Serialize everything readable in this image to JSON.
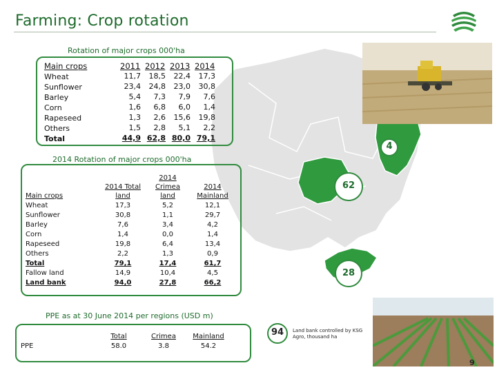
{
  "title": "Farming: Crop rotation",
  "table1": {
    "title": "Rotation of major crops 000'ha",
    "header": "Main crops",
    "years": [
      "2011",
      "2012",
      "2013",
      "2014"
    ],
    "rows": [
      {
        "crop": "Wheat",
        "values": [
          "11,7",
          "18,5",
          "22,4",
          "17,3"
        ]
      },
      {
        "crop": "Sunflower",
        "values": [
          "23,4",
          "24,8",
          "23,0",
          "30,8"
        ]
      },
      {
        "crop": "Barley",
        "values": [
          "5,4",
          "7,3",
          "7,9",
          "7,6"
        ]
      },
      {
        "crop": "Corn",
        "values": [
          "1,6",
          "6,8",
          "6,0",
          "1,4"
        ]
      },
      {
        "crop": "Rapeseed",
        "values": [
          "1,3",
          "2,6",
          "15,6",
          "19,8"
        ]
      },
      {
        "crop": "Others",
        "values": [
          "1,5",
          "2,8",
          "5,1",
          "2,2"
        ]
      },
      {
        "crop": "Total",
        "values": [
          "44,9",
          "62,8",
          "80,0",
          "79,1"
        ]
      }
    ]
  },
  "table2": {
    "title": "2014 Rotation of major crops 000'ha",
    "header": "Main crops",
    "col1": [
      "2014 Total",
      "land"
    ],
    "col2": [
      "2014",
      "Crimea",
      "land"
    ],
    "col3": [
      "2014",
      "Mainland"
    ],
    "rows": [
      {
        "crop": "Wheat",
        "values": [
          "17,3",
          "5,2",
          "12,1"
        ]
      },
      {
        "crop": "Sunflower",
        "values": [
          "30,8",
          "1,1",
          "29,7"
        ]
      },
      {
        "crop": "Barley",
        "values": [
          "7,6",
          "3,4",
          "4,2"
        ]
      },
      {
        "crop": "Corn",
        "values": [
          "1,4",
          "0,0",
          "1,4"
        ]
      },
      {
        "crop": "Rapeseed",
        "values": [
          "19,8",
          "6,4",
          "13,4"
        ]
      },
      {
        "crop": "Others",
        "values": [
          "2,2",
          "1,3",
          "0,9"
        ]
      },
      {
        "crop": "Total",
        "values": [
          "79,1",
          "17,4",
          "61,7"
        ]
      },
      {
        "crop": "Fallow land",
        "values": [
          "14,9",
          "10,4",
          "4,5"
        ]
      },
      {
        "crop": "Land bank",
        "values": [
          "94,0",
          "27,8",
          "66,2"
        ]
      }
    ]
  },
  "ppe": {
    "title": "PPE as at 30 June 2014 per regions (USD m)",
    "row_label": "PPE",
    "headers": [
      "Total",
      "Crimea",
      "Mainland"
    ],
    "values": [
      "58.0",
      "3.8",
      "54.2"
    ]
  },
  "map": {
    "region_values": [
      "4",
      "62",
      "28"
    ],
    "highlight_color": "#2f9a3e",
    "base_color": "#e3e3e3"
  },
  "landbank": {
    "total": "94",
    "caption": "Land bank controlled by KSG Agro, thousand ha"
  },
  "page_number": "9",
  "colors": {
    "accent": "#2f8a3d",
    "title": "#1e6b2c"
  }
}
